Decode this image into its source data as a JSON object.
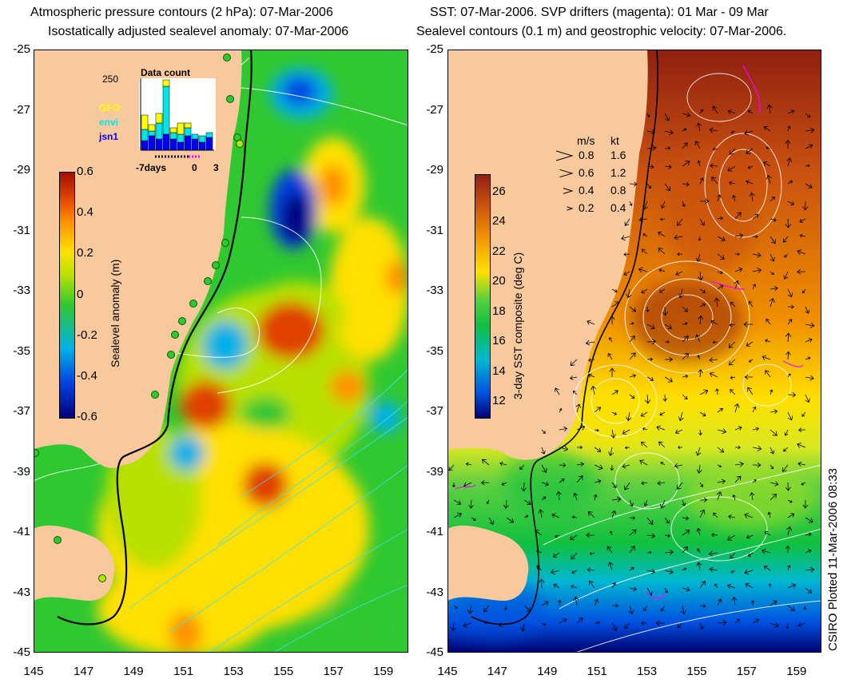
{
  "left_panel": {
    "title_line1": "Atmospheric pressure contours (2 hPa): 07-Mar-2006",
    "title_line2": "Isostatically adjusted sealevel anomaly: 07-Mar-2006",
    "colorbar": {
      "title": "Sealevel anomaly (m)",
      "ticks": [
        "0.6",
        "0.4",
        "0.2",
        "0",
        "-0.2",
        "-0.4",
        "-0.6"
      ]
    },
    "inset": {
      "title": "Data count",
      "y_tick": "250",
      "x_ticks": [
        "-7days",
        "0",
        "3"
      ],
      "legend": [
        {
          "name": "GFO",
          "color": "#ffff00"
        },
        {
          "name": "envi",
          "color": "#00e5e5"
        },
        {
          "name": "jsn1",
          "color": "#0000ff"
        }
      ]
    }
  },
  "right_panel": {
    "title_line1": "SST: 07-Mar-2006. SVP drifters (magenta): 01 Mar - 09 Mar",
    "title_line2": "Sealevel contours (0.1 m) and geostrophic velocity: 07-Mar-2006.",
    "colorbar": {
      "title": "3-day SST composite (deg C)",
      "ticks": [
        "26",
        "24",
        "22",
        "20",
        "18",
        "16",
        "14",
        "12"
      ]
    },
    "velocity_legend": {
      "header_ms": "m/s",
      "header_kt": "kt",
      "rows": [
        {
          "ms": "0.8",
          "kt": "1.6"
        },
        {
          "ms": "0.6",
          "kt": "1.2"
        },
        {
          "ms": "0.4",
          "kt": "0.8"
        },
        {
          "ms": "0.2",
          "kt": "0.4"
        }
      ]
    }
  },
  "axes": {
    "lat_ticks": [
      "-25",
      "-27",
      "-29",
      "-31",
      "-33",
      "-35",
      "-37",
      "-39",
      "-41",
      "-43",
      "-45"
    ],
    "lon_ticks": [
      "145",
      "147",
      "149",
      "151",
      "153",
      "155",
      "157",
      "159"
    ]
  },
  "credit": "CSIRO Plotted 11-Mar-2006 08:33",
  "colors": {
    "land": "#f9c99e",
    "sla_scale": [
      "#00007a",
      "#0040e0",
      "#00b0e8",
      "#30c830",
      "#b8e000",
      "#ffe000",
      "#ff9000",
      "#e04000",
      "#a01000"
    ],
    "sst_scale": [
      "#000070",
      "#0050e0",
      "#00b8d0",
      "#10c040",
      "#a8e020",
      "#ffe000",
      "#f09000",
      "#c85010",
      "#902010"
    ]
  }
}
